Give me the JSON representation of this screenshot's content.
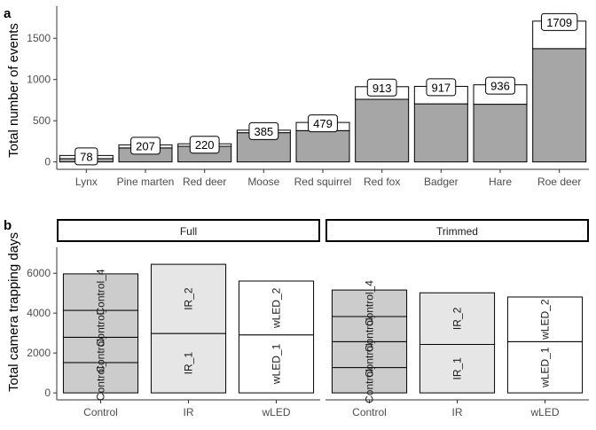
{
  "chart_data": [
    {
      "panel": "a",
      "type": "bar",
      "ylabel": "Total number of events",
      "xlabel": "",
      "categories": [
        "Lynx",
        "Pine marten",
        "Red deer",
        "Moose",
        "Red squirrel",
        "Red fox",
        "Badger",
        "Hare",
        "Roe deer"
      ],
      "series": [
        {
          "values": [
            40,
            170,
            190,
            355,
            380,
            760,
            705,
            700,
            1375
          ],
          "color": "#a6a6a6"
        },
        {
          "values": [
            38,
            37,
            30,
            30,
            99,
            153,
            212,
            236,
            334
          ],
          "color": "#ffffff"
        }
      ],
      "totals": [
        78,
        207,
        220,
        385,
        479,
        913,
        917,
        936,
        1709
      ],
      "yticks": [
        0,
        500,
        1000,
        1500
      ],
      "ylim": [
        -90,
        1890
      ],
      "grid": false,
      "stacked": true
    },
    {
      "panel": "b",
      "type": "bar",
      "ylabel": "Total camera trapping days",
      "xlabel": "",
      "categories": [
        "Control",
        "IR",
        "wLED"
      ],
      "yticks": [
        0,
        2000,
        4000,
        6000
      ],
      "ylim": [
        -350,
        7300
      ],
      "grid": false,
      "stacked": true,
      "facets": [
        {
          "label": "Full",
          "stacks": [
            {
              "category": "Control",
              "color": "#cccccc",
              "segments": [
                {
                  "label": "Control_1",
                  "value": 1520
                },
                {
                  "label": "Control_2",
                  "value": 1270
                },
                {
                  "label": "Control_3",
                  "value": 1350
                },
                {
                  "label": "Control_4",
                  "value": 1830
                }
              ]
            },
            {
              "category": "IR",
              "color": "#e6e6e6",
              "segments": [
                {
                  "label": "IR_1",
                  "value": 2980
                },
                {
                  "label": "IR_2",
                  "value": 3470
                }
              ]
            },
            {
              "category": "wLED",
              "color": "#ffffff",
              "segments": [
                {
                  "label": "wLED_1",
                  "value": 2910
                },
                {
                  "label": "wLED_2",
                  "value": 2700
                }
              ]
            }
          ]
        },
        {
          "label": "Trimmed",
          "stacks": [
            {
              "category": "Control",
              "color": "#cccccc",
              "segments": [
                {
                  "label": "Control_1",
                  "value": 1270
                },
                {
                  "label": "Control_2",
                  "value": 1300
                },
                {
                  "label": "Control_3",
                  "value": 1260
                },
                {
                  "label": "Control_4",
                  "value": 1330
                }
              ]
            },
            {
              "category": "IR",
              "color": "#e6e6e6",
              "segments": [
                {
                  "label": "IR_1",
                  "value": 2430
                },
                {
                  "label": "IR_2",
                  "value": 2590
                }
              ]
            },
            {
              "category": "wLED",
              "color": "#ffffff",
              "segments": [
                {
                  "label": "wLED_1",
                  "value": 2570
                },
                {
                  "label": "wLED_2",
                  "value": 2240
                }
              ]
            }
          ]
        }
      ]
    }
  ]
}
